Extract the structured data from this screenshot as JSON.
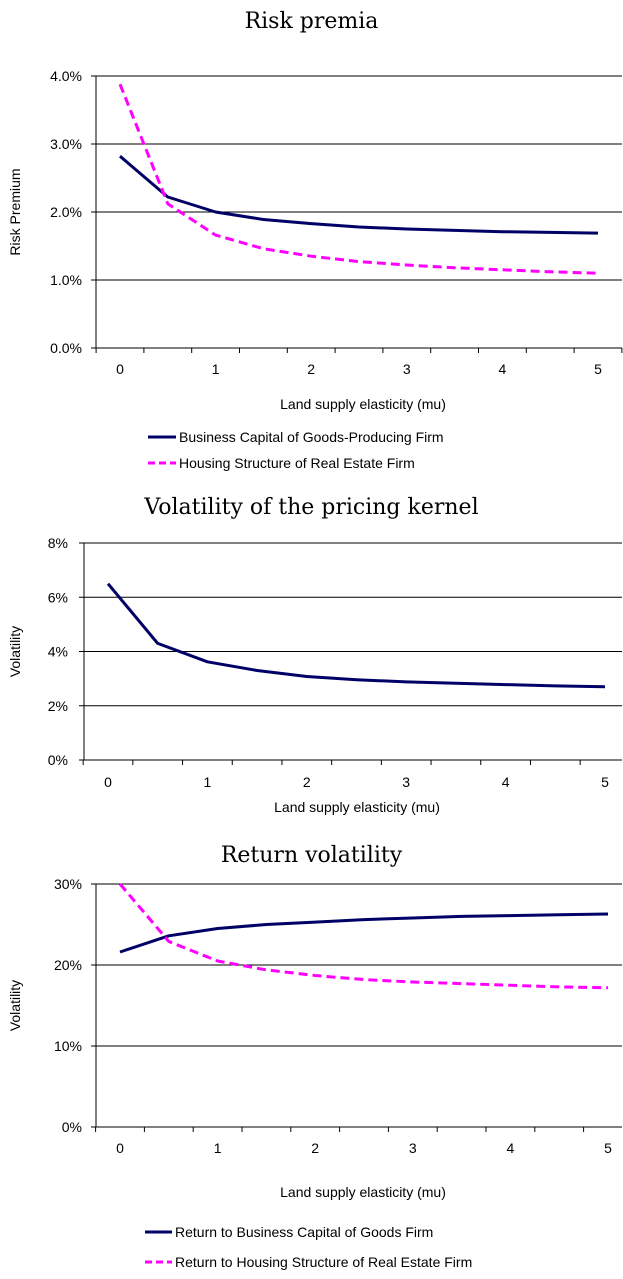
{
  "chart_data": [
    {
      "type": "line",
      "title": "Risk premia",
      "xlabel": "Land supply elasticity (mu)",
      "ylabel": "Risk Premium",
      "x": [
        0,
        0.5,
        1,
        1.5,
        2,
        2.5,
        3,
        3.5,
        4,
        4.5,
        5
      ],
      "x_tick_labels": [
        "0",
        "1",
        "2",
        "3",
        "4",
        "5"
      ],
      "y_tick_labels": [
        "0.0%",
        "1.0%",
        "2.0%",
        "3.0%",
        "4.0%"
      ],
      "ylim": [
        0,
        4.0
      ],
      "grid": true,
      "legend_position": "bottom",
      "series": [
        {
          "name": "Business Capital of Goods-Producing Firm",
          "color": "#000066",
          "style": "solid",
          "values": [
            2.82,
            2.22,
            2.0,
            1.89,
            1.83,
            1.78,
            1.75,
            1.73,
            1.71,
            1.7,
            1.69
          ]
        },
        {
          "name": "Housing Structure of Real Estate Firm",
          "color": "#ff00ff",
          "style": "dashed",
          "values": [
            3.88,
            2.12,
            1.66,
            1.46,
            1.35,
            1.27,
            1.22,
            1.18,
            1.15,
            1.12,
            1.1
          ]
        }
      ]
    },
    {
      "type": "line",
      "title": "Volatility of the pricing kernel",
      "xlabel": "Land supply elasticity (mu)",
      "ylabel": "Volatility",
      "x": [
        0,
        0.5,
        1,
        1.5,
        2,
        2.5,
        3,
        3.5,
        4,
        4.5,
        5
      ],
      "x_tick_labels": [
        "0",
        "1",
        "2",
        "3",
        "4",
        "5"
      ],
      "y_tick_labels": [
        "0%",
        "2%",
        "4%",
        "6%",
        "8%"
      ],
      "ylim": [
        0,
        8
      ],
      "grid": true,
      "series": [
        {
          "color": "#000066",
          "style": "solid",
          "values": [
            6.5,
            4.3,
            3.62,
            3.3,
            3.08,
            2.96,
            2.88,
            2.83,
            2.78,
            2.73,
            2.7
          ]
        }
      ]
    },
    {
      "type": "line",
      "title": "Return volatility",
      "xlabel": "Land supply elasticity (mu)",
      "ylabel": "Volatility",
      "x": [
        0,
        0.5,
        1,
        1.5,
        2,
        2.5,
        3,
        3.5,
        4,
        4.5,
        5
      ],
      "x_tick_labels": [
        "0",
        "1",
        "2",
        "3",
        "4",
        "5"
      ],
      "y_tick_labels": [
        "0%",
        "10%",
        "20%",
        "30%"
      ],
      "ylim": [
        0,
        30
      ],
      "grid": true,
      "legend_position": "bottom",
      "series": [
        {
          "name": "Return to Business Capital of Goods Firm",
          "color": "#000066",
          "style": "solid",
          "values": [
            21.6,
            23.6,
            24.5,
            25.0,
            25.3,
            25.6,
            25.8,
            26.0,
            26.1,
            26.2,
            26.3
          ]
        },
        {
          "name": "Return to Housing Structure of Real Estate Firm",
          "color": "#ff00ff",
          "style": "dashed",
          "values": [
            30.0,
            22.9,
            20.5,
            19.4,
            18.7,
            18.2,
            17.9,
            17.7,
            17.5,
            17.3,
            17.2
          ]
        }
      ]
    }
  ]
}
